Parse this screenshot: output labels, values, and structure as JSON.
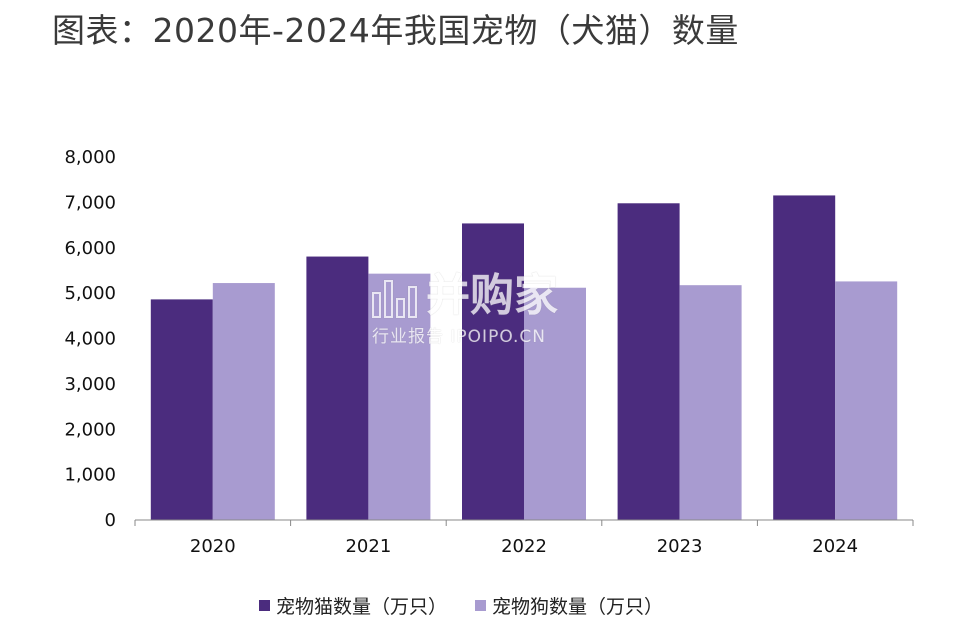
{
  "title": "图表：2020年-2024年我国宠物（犬猫）数量",
  "watermark": {
    "main": "并购家",
    "sub": "行业报告 IPOIPO.CN"
  },
  "chart_data": {
    "type": "bar",
    "categories": [
      "2020",
      "2021",
      "2022",
      "2023",
      "2024"
    ],
    "series": [
      {
        "name": "宠物猫数量（万只）",
        "values": [
          4862,
          5806,
          6536,
          6980,
          7153
        ],
        "color": "#4b2c7e"
      },
      {
        "name": "宠物狗数量（万只）",
        "values": [
          5222,
          5429,
          5119,
          5175,
          5258
        ],
        "color": "#a89bd0"
      }
    ],
    "y_ticks": [
      "0",
      "1,000",
      "2,000",
      "3,000",
      "4,000",
      "5,000",
      "6,000",
      "7,000",
      "8,000"
    ],
    "ylim": [
      0,
      8000
    ],
    "grid": false,
    "legend_position": "bottom"
  }
}
